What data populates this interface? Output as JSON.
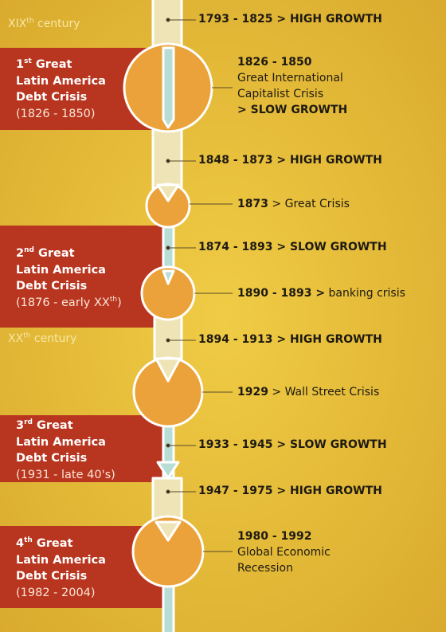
{
  "centuries": {
    "xix": {
      "prefix": "XIX",
      "sup": "th",
      "word": "century"
    },
    "xx": {
      "prefix": "XX",
      "sup": "th",
      "word": "century"
    }
  },
  "crises": [
    {
      "ordinal": "1",
      "sup": "st",
      "title_rest": " Great",
      "line2": "Latin America",
      "line3": "Debt Crisis",
      "period": "(1826 - 1850)"
    },
    {
      "ordinal": "2",
      "sup": "nd",
      "title_rest": " Great",
      "line2": "Latin America",
      "line3": "Debt Crisis",
      "period_main": "(1876 - early XX",
      "period_sup": "th",
      "period_end": ")"
    },
    {
      "ordinal": "3",
      "sup": "rd",
      "title_rest": " Great",
      "line2": "Latin America",
      "line3": "Debt Crisis",
      "period": "(1931 - late 40's)"
    },
    {
      "ordinal": "4",
      "sup": "th",
      "title_rest": " Great",
      "line2": "Latin America",
      "line3": "Debt Crisis",
      "period": "(1982 - 2004)"
    }
  ],
  "growth_phases": [
    {
      "text": "1793 - 1825 > HIGH GROWTH"
    },
    {
      "text": "1848 - 1873 > HIGH GROWTH"
    },
    {
      "text": "1874 - 1893 > SLOW GROWTH"
    },
    {
      "text": "1894 - 1913 > HIGH GROWTH"
    },
    {
      "text": "1933 - 1945 > SLOW GROWTH"
    },
    {
      "text": "1947 - 1975 > HIGH GROWTH"
    }
  ],
  "crisis_events": [
    {
      "bold": "1826 - 1850",
      "l2": "Great International",
      "l3": "Capitalist Crisis",
      "l4": "> SLOW GROWTH"
    },
    {
      "bold": "1873",
      "rest": " > Great Crisis"
    },
    {
      "bold": "1890 - 1893 >",
      "rest": " banking crisis"
    },
    {
      "bold": "1929",
      "rest": " > Wall Street Crisis"
    },
    {
      "bold": "1980 - 1992",
      "l2": "Global Economic",
      "l3": "Recession"
    }
  ],
  "colors": {
    "background": "#e8c23a",
    "crisis_box": "#b8351f",
    "circle": "#eba23a",
    "arrow_high": "#efe4b6",
    "arrow_slow": "#b8ddd6",
    "text": "#1e1a12"
  }
}
